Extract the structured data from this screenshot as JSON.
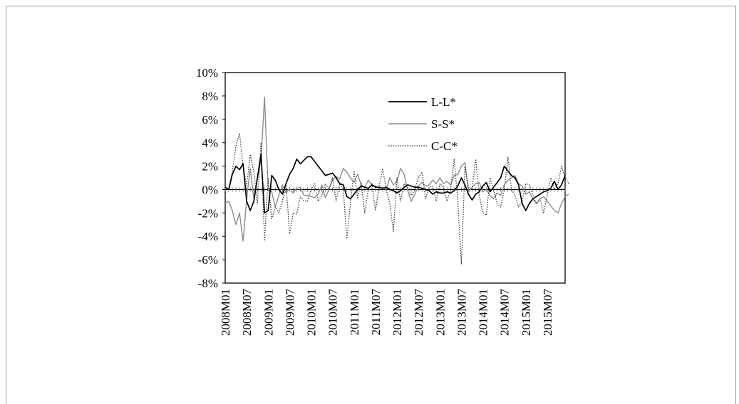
{
  "chart_data": {
    "type": "line",
    "title": "",
    "xlabel": "",
    "ylabel": "",
    "ylim": [
      -0.08,
      0.1
    ],
    "y_ticks": [
      0.1,
      0.08,
      0.06,
      0.04,
      0.02,
      0.0,
      -0.02,
      -0.04,
      -0.06,
      -0.08
    ],
    "y_tick_labels": [
      "10%",
      "8%",
      "6%",
      "4%",
      "2%",
      "0%",
      "-2%",
      "-4%",
      "-6%",
      "-8%"
    ],
    "x_start": "2008M01",
    "x_tick_labels": [
      "2008M01",
      "2008M07",
      "2009M01",
      "2009M07",
      "2010M01",
      "2010M07",
      "2011M01",
      "2011M07",
      "2012M01",
      "2012M07",
      "2013M01",
      "2013M07",
      "2014M01",
      "2014M07",
      "2015M01",
      "2015M07"
    ],
    "x_tick_index": [
      0,
      6,
      12,
      18,
      24,
      30,
      36,
      42,
      48,
      54,
      60,
      66,
      72,
      78,
      84,
      90
    ],
    "legend_position": "top-center",
    "grid": false,
    "series": [
      {
        "name": "L-L*",
        "style": "solid-black",
        "color": "#000000",
        "values": [
          0.002,
          0.0,
          0.013,
          0.02,
          0.017,
          0.022,
          -0.01,
          -0.018,
          -0.01,
          0.01,
          0.03,
          -0.02,
          -0.018,
          0.012,
          0.008,
          0.0,
          -0.004,
          0.005,
          0.013,
          0.018,
          0.026,
          0.022,
          0.025,
          0.028,
          0.028,
          0.024,
          0.02,
          0.016,
          0.012,
          0.013,
          0.014,
          0.01,
          0.005,
          0.004,
          -0.006,
          -0.008,
          -0.004,
          0.0,
          0.003,
          0.002,
          0.001,
          0.004,
          0.002,
          0.002,
          0.001,
          0.002,
          0.0,
          -0.001,
          -0.003,
          -0.001,
          0.002,
          0.004,
          0.003,
          0.002,
          0.002,
          0.001,
          0.0,
          -0.001,
          -0.004,
          -0.002,
          -0.003,
          -0.003,
          -0.002,
          -0.003,
          -0.001,
          0.003,
          0.01,
          0.004,
          -0.004,
          -0.009,
          -0.004,
          -0.002,
          0.003,
          0.006,
          -0.002,
          0.002,
          0.006,
          0.01,
          0.02,
          0.016,
          0.012,
          0.01,
          0.004,
          -0.012,
          -0.018,
          -0.012,
          -0.008,
          -0.006,
          -0.004,
          -0.002,
          -0.001,
          0.001,
          0.007,
          0.0,
          0.004,
          0.012
        ]
      },
      {
        "name": "S-S*",
        "style": "solid-gray",
        "color": "#8c8c8c",
        "values": [
          -0.012,
          -0.01,
          -0.018,
          -0.03,
          -0.02,
          -0.044,
          -0.008,
          0.018,
          -0.008,
          0.01,
          0.025,
          0.079,
          0.0,
          -0.002,
          -0.015,
          -0.005,
          0.004,
          -0.003,
          0.001,
          -0.003,
          0.001,
          0.002,
          -0.005,
          -0.005,
          -0.006,
          -0.007,
          -0.004,
          0.004,
          -0.007,
          0.0,
          0.008,
          0.011,
          0.009,
          0.018,
          0.015,
          0.01,
          0.006,
          0.013,
          0.004,
          0.002,
          0.008,
          0.004,
          0.003,
          0.001,
          0.002,
          0.0,
          0.01,
          0.004,
          0.007,
          0.018,
          0.013,
          -0.001,
          -0.01,
          -0.004,
          0.003,
          0.006,
          0.003,
          0.004,
          0.008,
          0.005,
          0.01,
          0.005,
          0.007,
          0.004,
          0.012,
          0.013,
          0.02,
          0.023,
          -0.002,
          0.002,
          0.005,
          0.006,
          -0.002,
          0.0,
          -0.005,
          -0.008,
          -0.003,
          -0.005,
          0.004,
          0.008,
          0.01,
          0.012,
          0.005,
          0.003,
          -0.004,
          -0.002,
          -0.008,
          -0.012,
          -0.008,
          -0.006,
          -0.01,
          -0.014,
          -0.018,
          -0.02,
          -0.012,
          -0.006,
          -0.004
        ]
      },
      {
        "name": "C-C*",
        "style": "dotted-black",
        "color": "#333333",
        "values": [
          -0.003,
          0.0,
          0.015,
          0.037,
          0.048,
          0.02,
          0.003,
          0.03,
          0.015,
          -0.012,
          0.04,
          -0.044,
          0.01,
          -0.025,
          -0.015,
          -0.02,
          -0.01,
          0.005,
          -0.038,
          -0.02,
          -0.021,
          -0.006,
          -0.01,
          -0.01,
          0.0,
          0.005,
          -0.01,
          -0.005,
          0.005,
          0.0,
          0.01,
          -0.01,
          0.005,
          0.0,
          -0.042,
          -0.012,
          0.016,
          -0.007,
          0.006,
          -0.02,
          0.0,
          0.005,
          -0.018,
          0.002,
          0.018,
          0.0,
          -0.012,
          -0.036,
          0.01,
          -0.01,
          0.005,
          0.002,
          -0.005,
          0.0,
          0.01,
          0.015,
          -0.008,
          0.002,
          0.003,
          -0.01,
          0.005,
          0.002,
          -0.01,
          0.0,
          0.026,
          -0.01,
          -0.064,
          0.02,
          0.002,
          0.0,
          0.026,
          -0.005,
          -0.02,
          -0.022,
          0.01,
          0.0,
          -0.012,
          -0.015,
          0.0,
          0.028,
          0.0,
          -0.005,
          -0.015,
          -0.01,
          0.005,
          0.004,
          -0.005,
          -0.012,
          -0.008,
          -0.02,
          -0.005,
          0.01,
          0.0,
          0.005,
          0.02,
          0.01,
          0.005
        ]
      }
    ]
  }
}
